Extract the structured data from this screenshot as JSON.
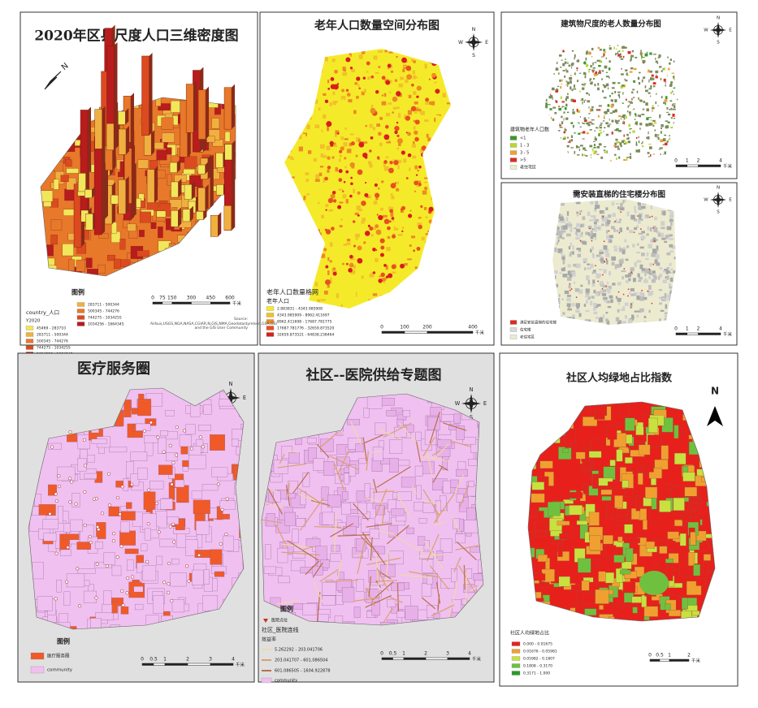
{
  "compass": [
    "N",
    "E",
    "S",
    "W"
  ],
  "legend_heading": "图例",
  "unit": "千米",
  "panels": [
    {
      "title": "2020年区县尺度人口三维密度图",
      "legend_title": "country_人口",
      "legend_subtitle": "Y2020",
      "legend": [
        {
          "label": "45469 - 283710",
          "color": "#f2e65a"
        },
        {
          "label": "283711 - 500344",
          "color": "#f0b040"
        },
        {
          "label": "500345 - 744276",
          "color": "#e8782a"
        },
        {
          "label": "744275 - 1034255",
          "color": "#dc4a20"
        },
        {
          "label": "1034256 - 1664345",
          "color": "#b81c1c"
        }
      ],
      "scale": [
        0,
        75,
        150,
        300,
        450,
        600
      ],
      "source": "Source: Airbus,USGS,NGA,NASA,CGIAR,N,GIS,NMA,Geodatastyrelsen,GSA,GSI and the GIS User Community"
    },
    {
      "title": "老年人口数量空间分布图",
      "legend_title": "老年人口数量格网",
      "legend_subtitle": "老年人口",
      "legend": [
        {
          "label": "2.883831 - 4343.985908",
          "color": "#f5ea2a"
        },
        {
          "label": "4343.985909 - 8962.411697",
          "color": "#f2c02a"
        },
        {
          "label": "8962.411698 - 17687.781775",
          "color": "#ee8a22"
        },
        {
          "label": "17687.781776 - 32659.873520",
          "color": "#e8501e"
        },
        {
          "label": "32659.873521 - 64838.238464",
          "color": "#d81e1e"
        }
      ],
      "scale": [
        0,
        100,
        200,
        400
      ]
    },
    {
      "title": "建筑物尺度的老人数量分布图",
      "legend_title": "建筑物老年人口数",
      "legend": [
        {
          "label": "<1",
          "color": "#3a9a2a"
        },
        {
          "label": "1 - 3",
          "color": "#b8d830"
        },
        {
          "label": "3 - 5",
          "color": "#f0a030"
        },
        {
          "label": ">5",
          "color": "#e02a20"
        },
        {
          "label": "老住宅区",
          "color": "#ecebd0"
        }
      ],
      "scale": [
        0,
        1,
        2,
        4
      ]
    },
    {
      "title": "需安装直梯的住宅楼分布图",
      "legend": [
        {
          "label": "满足安装直梯的住宅楼",
          "color": "#e02a20"
        },
        {
          "label": "住宅楼",
          "color": "#d8d8d8"
        },
        {
          "label": "老住宅区",
          "color": "#ecebd0"
        }
      ],
      "scale": [
        0,
        1,
        2,
        4
      ]
    },
    {
      "title": "医疗服务圈",
      "legend": [
        {
          "label": "医疗服务圈",
          "color": "#f05a28"
        },
        {
          "label": "community",
          "color": "#f0c0f0"
        }
      ],
      "scale": [
        0,
        0.5,
        1,
        2,
        3,
        4
      ]
    },
    {
      "title": "社区--医院供给专题图",
      "point_label": "医院点位",
      "legend_title": "社区_医院连线",
      "legend_subtitle": "效益率",
      "legend": [
        {
          "label": "5.262292 - 203.041706",
          "color": "#f0d8a8"
        },
        {
          "label": "203.041707 - 601.086504",
          "color": "#d8a070"
        },
        {
          "label": "601.086505 - 1604.922878",
          "color": "#b8704a"
        },
        {
          "label": "community",
          "color": "#f0c0f0"
        }
      ],
      "scale": [
        0,
        0.5,
        1,
        2,
        3,
        4
      ]
    },
    {
      "title": "社区人均绿地占比指数",
      "legend_title": "社区人均绿地占比",
      "legend": [
        {
          "label": "0.000 - 0.01675",
          "color": "#e8201c"
        },
        {
          "label": "0.01676 - 0.05981",
          "color": "#f0a030"
        },
        {
          "label": "0.05982 - 0.1807",
          "color": "#c8e040"
        },
        {
          "label": "0.1808 - 0.3170",
          "color": "#70c040"
        },
        {
          "label": "0.3171 - 1.000",
          "color": "#2a9a2a"
        }
      ],
      "scale": [
        0,
        0.5,
        1,
        2
      ]
    }
  ]
}
